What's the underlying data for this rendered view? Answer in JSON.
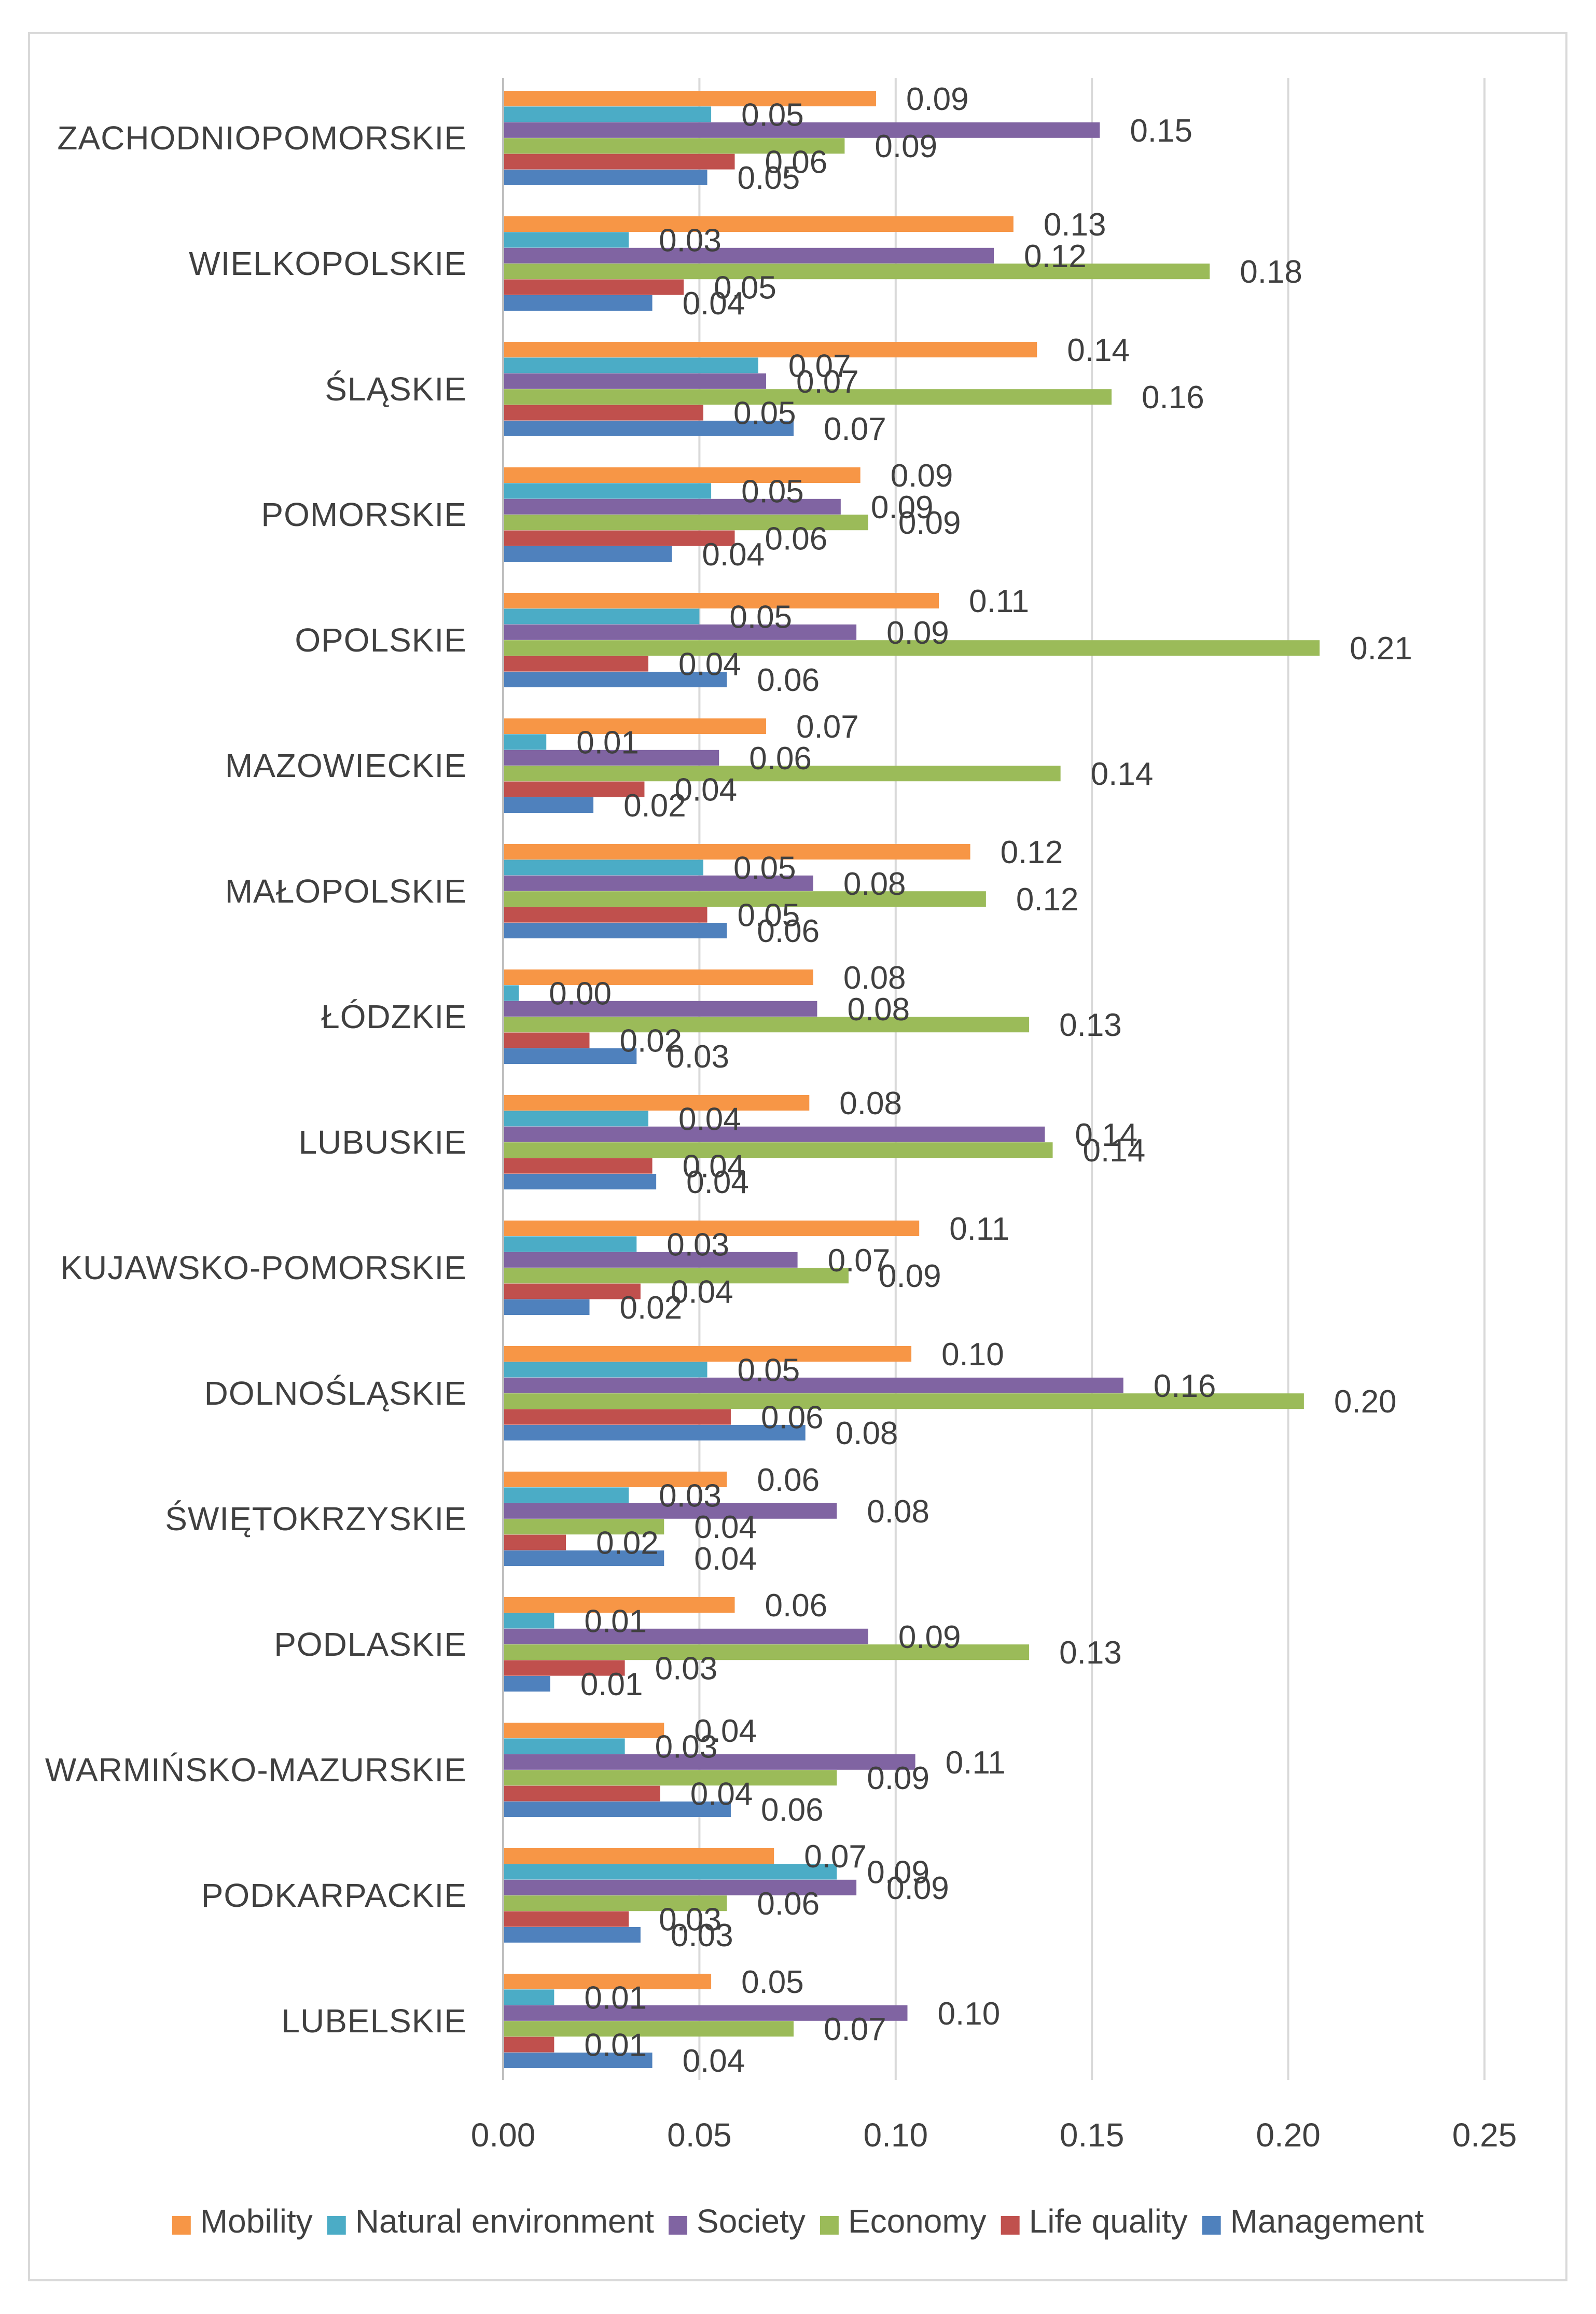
{
  "chart_data": {
    "type": "bar",
    "orientation": "horizontal",
    "title": "",
    "xlabel": "",
    "ylabel": "",
    "xlim": [
      0,
      0.25
    ],
    "x_ticks": [
      "0.00",
      "0.05",
      "0.10",
      "0.15",
      "0.20",
      "0.25"
    ],
    "grid": true,
    "legend_position": "bottom",
    "categories": [
      "ZACHODNIOPOMORSKIE",
      "WIELKOPOLSKIE",
      "ŚLĄSKIE",
      "POMORSKIE",
      "OPOLSKIE",
      "MAZOWIECKIE",
      "MAŁOPOLSKIE",
      "ŁÓDZKIE",
      "LUBUSKIE",
      "KUJAWSKO-POMORSKIE",
      "DOLNOŚLĄSKIE",
      "ŚWIĘTOKRZYSKIE",
      "PODLASKIE",
      "WARMIŃSKO-MAZURSKIE",
      "PODKARPACKIE",
      "LUBELSKIE"
    ],
    "series": [
      {
        "name": "Mobility",
        "color": "#f79646",
        "values": [
          0.095,
          0.13,
          0.136,
          0.091,
          0.111,
          0.067,
          0.119,
          0.079,
          0.078,
          0.106,
          0.104,
          0.057,
          0.059,
          0.041,
          0.069,
          0.053
        ],
        "labels": [
          "0.09",
          "0.13",
          "0.14",
          "0.09",
          "0.11",
          "0.07",
          "0.12",
          "0.08",
          "0.08",
          "0.11",
          "0.10",
          "0.06",
          "0.06",
          "0.04",
          "0.07",
          "0.05"
        ]
      },
      {
        "name": "Natural environment",
        "color": "#4bacc6",
        "values": [
          0.053,
          0.032,
          0.065,
          0.053,
          0.05,
          0.011,
          0.051,
          0.004,
          0.037,
          0.034,
          0.052,
          0.032,
          0.013,
          0.031,
          0.085,
          0.013
        ],
        "labels": [
          "0.05",
          "0.03",
          "0.07",
          "0.05",
          "0.05",
          "0.01",
          "0.05",
          "0.00",
          "0.04",
          "0.03",
          "0.05",
          "0.03",
          "0.01",
          "0.03",
          "0.09",
          "0.01"
        ]
      },
      {
        "name": "Society",
        "color": "#8064a2",
        "values": [
          0.152,
          0.125,
          0.067,
          0.086,
          0.09,
          0.055,
          0.079,
          0.08,
          0.138,
          0.075,
          0.158,
          0.085,
          0.093,
          0.105,
          0.09,
          0.103
        ],
        "labels": [
          "0.15",
          "0.12",
          "0.07",
          "0.09",
          "0.09",
          "0.06",
          "0.08",
          "0.08",
          "0.14",
          "0.07",
          "0.16",
          "0.08",
          "0.09",
          "0.11",
          "0.09",
          "0.10"
        ]
      },
      {
        "name": "Economy",
        "color": "#9bbb59",
        "values": [
          0.087,
          0.18,
          0.155,
          0.093,
          0.208,
          0.142,
          0.123,
          0.134,
          0.14,
          0.088,
          0.204,
          0.041,
          0.134,
          0.085,
          0.057,
          0.074
        ],
        "labels": [
          "0.09",
          "0.18",
          "0.16",
          "0.09",
          "0.21",
          "0.14",
          "0.12",
          "0.13",
          "0.14",
          "0.09",
          "0.20",
          "0.04",
          "0.13",
          "0.09",
          "0.06",
          "0.07"
        ]
      },
      {
        "name": "Life quality",
        "color": "#c0504d",
        "values": [
          0.059,
          0.046,
          0.051,
          0.059,
          0.037,
          0.036,
          0.052,
          0.022,
          0.038,
          0.035,
          0.058,
          0.016,
          0.031,
          0.04,
          0.032,
          0.013
        ],
        "labels": [
          "0.06",
          "0.05",
          "0.05",
          "0.06",
          "0.04",
          "0.04",
          "0.05",
          "0.02",
          "0.04",
          "0.04",
          "0.06",
          "0.02",
          "0.03",
          "0.04",
          "0.03",
          "0.01"
        ]
      },
      {
        "name": "Management",
        "color": "#4f81bd",
        "values": [
          0.052,
          0.038,
          0.074,
          0.043,
          0.057,
          0.023,
          0.057,
          0.034,
          0.039,
          0.022,
          0.077,
          0.041,
          0.012,
          0.058,
          0.035,
          0.038
        ],
        "labels": [
          "0.05",
          "0.04",
          "0.07",
          "0.04",
          "0.06",
          "0.02",
          "0.06",
          "0.03",
          "0.04",
          "0.02",
          "0.08",
          "0.04",
          "0.01",
          "0.06",
          "0.03",
          "0.04"
        ]
      }
    ],
    "legend_order": [
      "Mobility",
      "Natural environment",
      "Society",
      "Economy",
      "Life quality",
      "Management"
    ]
  }
}
